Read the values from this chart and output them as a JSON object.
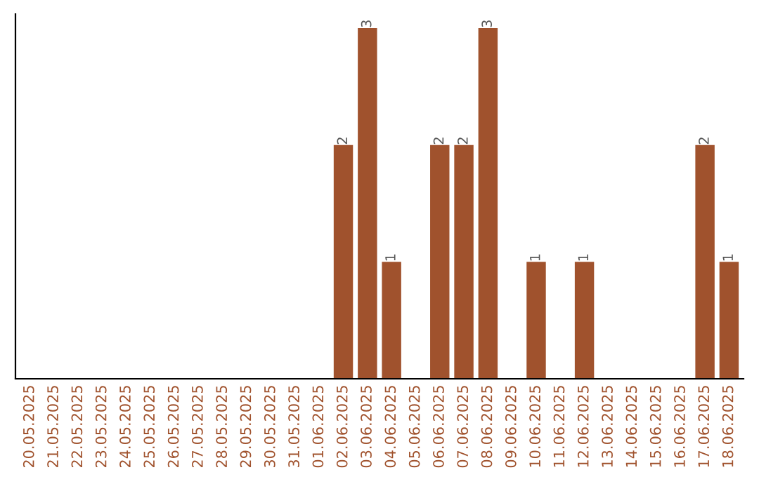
{
  "chart_data": {
    "type": "bar",
    "categories": [
      "20.05.2025",
      "21.05.2025",
      "22.05.2025",
      "23.05.2025",
      "24.05.2025",
      "25.05.2025",
      "26.05.2025",
      "27.05.2025",
      "28.05.2025",
      "29.05.2025",
      "30.05.2025",
      "31.05.2025",
      "01.06.2025",
      "02.06.2025",
      "03.06.2025",
      "04.06.2025",
      "05.06.2025",
      "06.06.2025",
      "07.06.2025",
      "08.06.2025",
      "09.06.2025",
      "10.06.2025",
      "11.06.2025",
      "12.06.2025",
      "13.06.2025",
      "14.06.2025",
      "15.06.2025",
      "16.06.2025",
      "17.06.2025",
      "18.06.2025"
    ],
    "values": [
      null,
      null,
      null,
      null,
      null,
      null,
      null,
      null,
      null,
      null,
      null,
      null,
      null,
      2,
      3,
      1,
      null,
      2,
      2,
      3,
      null,
      1,
      null,
      1,
      null,
      null,
      null,
      null,
      2,
      1
    ],
    "data_labels": true,
    "color": "#a0522d",
    "tick_labels": "x",
    "grid": false
  }
}
